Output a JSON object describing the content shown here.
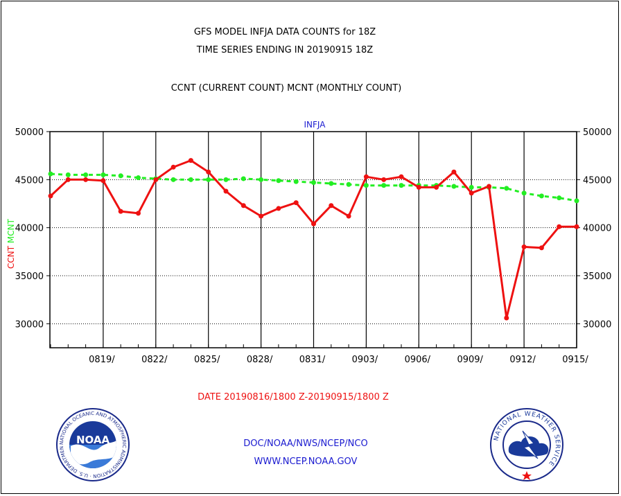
{
  "header": {
    "title_line1": "GFS MODEL INFJA DATA COUNTS for 18Z",
    "title_line2": "TIME SERIES ENDING IN 20190915 18Z",
    "subtitle": "CCNT (CURRENT COUNT) MCNT (MONTHLY COUNT)"
  },
  "footer": {
    "date_range": "DATE 20190816/1800 Z-20190915/1800 Z",
    "org_line": "DOC/NOAA/NWS/NCEP/NCO",
    "url_line": "WWW.NCEP.NOAA.GOV",
    "noaa_logo_text": "NOAA",
    "noaa_ring_text": "NATIONAL OCEANIC AND ATMOSPHERIC ADMINISTRATION · U.S. DEPARTMENT OF COMMERCE ·",
    "nws_ring_text": "NATIONAL WEATHER SERVICE"
  },
  "colors": {
    "ccnt": "#ee1111",
    "mcnt": "#22ee22",
    "panel_label": "#1a1ad0",
    "date_label": "#ee1111",
    "footer_text": "#1a1ad0"
  },
  "chart_data": {
    "type": "line",
    "panel_label": "INFJA",
    "ylabel_left_parts": [
      {
        "text": "CCNT",
        "color": "#ee1111"
      },
      {
        "text": "MCNT",
        "color": "#22ee22"
      }
    ],
    "ylim": [
      27500,
      50000
    ],
    "yticks": [
      30000,
      35000,
      40000,
      45000,
      50000
    ],
    "ytick_labels": [
      "30000",
      "35000",
      "40000",
      "45000",
      "50000"
    ],
    "x_dates": [
      "0816",
      "0817",
      "0818",
      "0819",
      "0820",
      "0821",
      "0822",
      "0823",
      "0824",
      "0825",
      "0826",
      "0827",
      "0828",
      "0829",
      "0830",
      "0831",
      "0901",
      "0902",
      "0903",
      "0904",
      "0905",
      "0906",
      "0907",
      "0908",
      "0909",
      "0910",
      "0911",
      "0912",
      "0913",
      "0914",
      "0915"
    ],
    "xtick_labels": [
      "0819/",
      "0822/",
      "0825/",
      "0828/",
      "0831/",
      "0903/",
      "0906/",
      "0909/",
      "0912/",
      "0915/"
    ],
    "xtick_index": [
      3,
      6,
      9,
      12,
      15,
      18,
      21,
      24,
      27,
      30
    ],
    "grid": true,
    "series": [
      {
        "name": "CCNT",
        "color": "#ee1111",
        "style": "solid",
        "values": [
          43300,
          45000,
          45000,
          44900,
          41700,
          41500,
          45000,
          46300,
          47000,
          45800,
          43800,
          42300,
          41200,
          42000,
          42600,
          40400,
          42300,
          41200,
          45300,
          45000,
          45300,
          44200,
          44200,
          45800,
          43600,
          44300,
          30600,
          38000,
          37900,
          40100,
          40100
        ]
      },
      {
        "name": "MCNT",
        "color": "#22ee22",
        "style": "dashed",
        "values": [
          45600,
          45500,
          45500,
          45500,
          45400,
          45200,
          45100,
          45000,
          45000,
          45000,
          45000,
          45100,
          45000,
          44900,
          44800,
          44700,
          44600,
          44500,
          44400,
          44400,
          44400,
          44400,
          44400,
          44300,
          44200,
          44200,
          44100,
          43600,
          43300,
          43100,
          42800
        ]
      }
    ]
  }
}
